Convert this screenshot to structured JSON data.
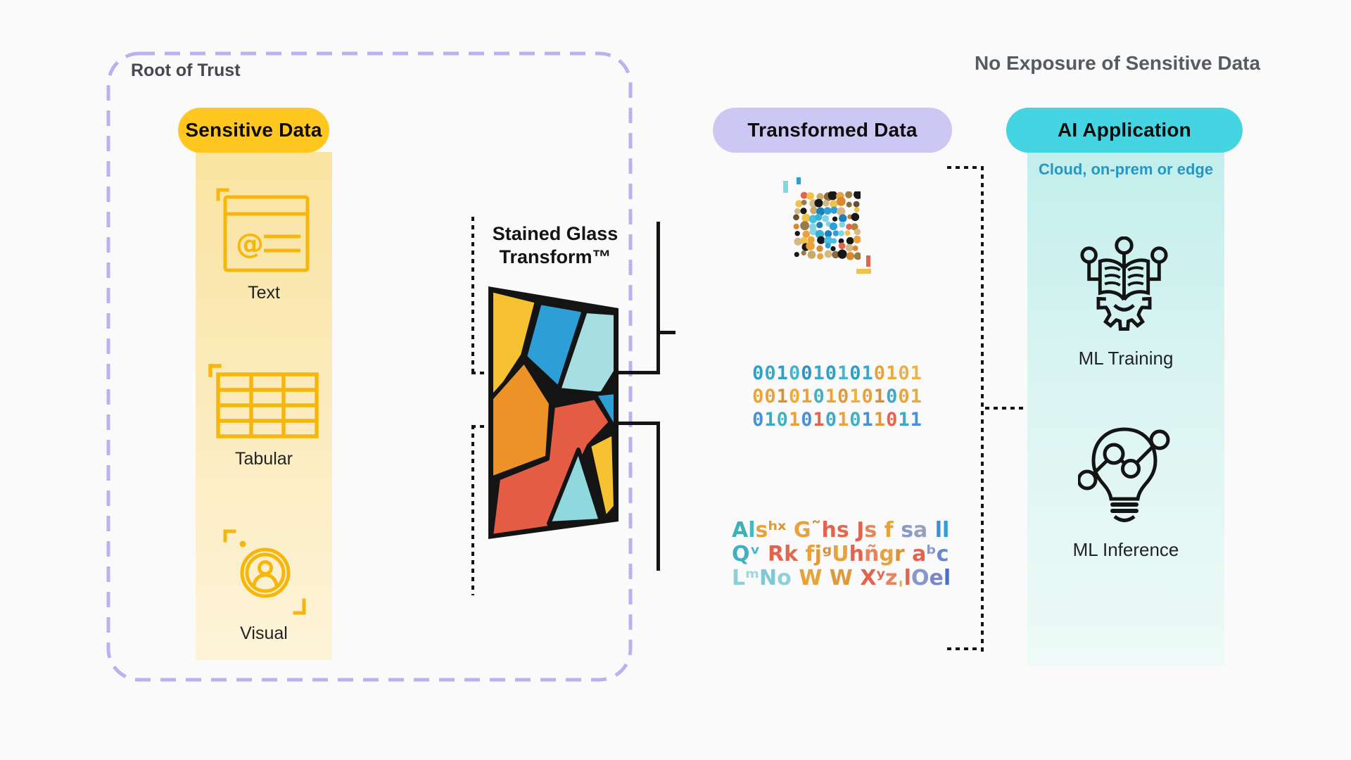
{
  "root_of_trust": {
    "label": "Root of Trust"
  },
  "sensitive_data": {
    "title": "Sensitive Data",
    "items": [
      {
        "label": "Text",
        "icon": "email-card-icon"
      },
      {
        "label": "Tabular",
        "icon": "table-icon"
      },
      {
        "label": "Visual",
        "icon": "avatar-icon"
      }
    ]
  },
  "transform": {
    "title_line1": "Stained Glass",
    "title_line2": "Transform™"
  },
  "transformed_data": {
    "title": "Transformed Data",
    "binary": {
      "lines": [
        {
          "text": "00100101010101",
          "char_colors": [
            "#2f9fc6",
            "#38a9c9",
            "#2f9fc6",
            "#47b3cd",
            "#2f93c4",
            "#38a9c9",
            "#2f9fc6",
            "#47b3cd",
            "#2f9fc6",
            "#38a9c9",
            "#e2a23c",
            "#eaaa35",
            "#e8b04a",
            "#f0b43e"
          ]
        },
        {
          "text": "00101010101001",
          "char_colors": [
            "#eda433",
            "#e8a23c",
            "#d8903a",
            "#f0ac2f",
            "#e8a23c",
            "#46b0c0",
            "#eda433",
            "#e09a3c",
            "#f0b03a",
            "#e8a23c",
            "#d8903a",
            "#3fa8c4",
            "#eda433",
            "#e8a840"
          ]
        },
        {
          "text": "01010101011011",
          "char_colors": [
            "#4a90d4",
            "#3fa8c4",
            "#46b0c0",
            "#e8a23c",
            "#4a90d4",
            "#e2634e",
            "#3fa8c4",
            "#e8a23c",
            "#46b0c0",
            "#4a90d4",
            "#e09a3c",
            "#e2634e",
            "#3fa8c4",
            "#4a90d4"
          ]
        }
      ]
    },
    "garbled": {
      "lines": [
        {
          "text": "Alsʰˣ G˜hs Js f sa ll",
          "char_colors": [
            "#3fb0b8",
            "#46b8c0",
            "#e8a23c",
            "#e09a3c",
            "#d8903a",
            "#ffffff",
            "#e8a23c",
            "#d8903a",
            "#e2634e",
            "#e06a50",
            "#ffffff",
            "#e2634e",
            "#e8845c",
            "#ffffff",
            "#e8a23c",
            "#ffffff",
            "#8898c8",
            "#98a0c0",
            "#ffffff",
            "#3f8fd0",
            "#2f9fd6"
          ]
        },
        {
          "text": "Qᵛ Rk fjᵍUhñgr aᵇc",
          "char_colors": [
            "#3fb0c0",
            "#46b8c8",
            "#ffffff",
            "#e2634e",
            "#e06a50",
            "#ffffff",
            "#e8a23c",
            "#e09a3c",
            "#d8903a",
            "#e8a23c",
            "#e2634e",
            "#e8845c",
            "#e8a23c",
            "#d8903a",
            "#ffffff",
            "#e2634e",
            "#8898c8",
            "#6888c8"
          ]
        },
        {
          "text": "LᵐNo W W XʸzˌlOel",
          "char_colors": [
            "#8fd0d8",
            "#9fd8da",
            "#7fc8d4",
            "#8fd0d8",
            "#ffffff",
            "#e8a23c",
            "#ffffff",
            "#e09a3c",
            "#ffffff",
            "#e2634e",
            "#e06a50",
            "#e8845c",
            "#e8a23c",
            "#e2634e",
            "#8898c8",
            "#7888c8",
            "#4a6fc8"
          ]
        }
      ]
    }
  },
  "ai_application": {
    "heading": "No Exposure of Sensitive Data",
    "title": "AI Application",
    "subtitle": "Cloud, on-prem or edge",
    "items": [
      {
        "label": "ML Training",
        "icon": "book-gear-icon"
      },
      {
        "label": "ML Inference",
        "icon": "bulb-network-icon"
      }
    ]
  },
  "mosaic": {
    "palette_cool": [
      "#2e9fd6",
      "#49bfe0",
      "#1c7fb8",
      "#35b2d8",
      "#7fd4e8",
      "#171717",
      "#2e9fd6",
      "#49bfe0"
    ],
    "palette_warm": [
      "#e8a33c",
      "#d8882e",
      "#8a6a3a",
      "#6b4e2e",
      "#c8a96a",
      "#f0c24a",
      "#171717",
      "#b5803a",
      "#e2634e",
      "#d4b886",
      "#9a7a4a",
      "#f0c24a"
    ]
  },
  "colors": {
    "yellow_pill": "#ffc720",
    "lavender_pill": "#cdc7f4",
    "cyan_pill": "#44d4e2",
    "dashed_border": "#b8b3ef",
    "icon_gold": "#f6b60b"
  }
}
